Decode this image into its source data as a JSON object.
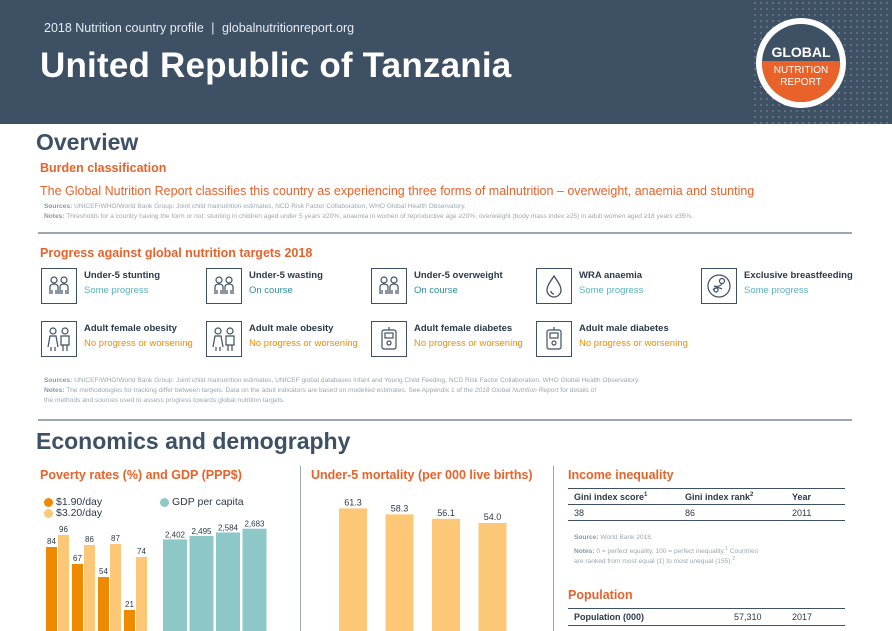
{
  "header": {
    "subtitle": "2018 Nutrition country profile",
    "separator": "|",
    "website": "globalnutritionreport.org",
    "country": "United Republic of Tanzania",
    "logo": {
      "line1": "GLOBAL",
      "line2": "NUTRITION",
      "line3": "REPORT"
    }
  },
  "overview": {
    "title": "Overview",
    "burden": {
      "heading": "Burden classification",
      "text": "The Global Nutrition Report classifies this country as experiencing three forms of malnutrition – overweight, anaemia and stunting",
      "sources_label": "Sources:",
      "sources": "UNICEF/WHO/World Bank Group: Joint child malnutrition estimates, NCD Risk Factor Collaboration, WHO Global Health Observatory.",
      "notes_label": "Notes:",
      "notes": "Thresholds for a country having the form or not: stunting in children aged under 5 years ≥20%; anaemia in women of reproductive age ≥20%; overweight (body mass index ≥25) in adult women aged ≥18 years ≥35%."
    },
    "progress": {
      "heading": "Progress against global nutrition targets 2018",
      "targets": [
        {
          "label": "Under-5 stunting",
          "status": "Some progress",
          "icon": "children-icon",
          "status_color": "#5ab4bc"
        },
        {
          "label": "Under-5 wasting",
          "status": "On course",
          "icon": "children-icon",
          "status_color": "#2f8fa0"
        },
        {
          "label": "Under-5 overweight",
          "status": "On course",
          "icon": "children-icon",
          "status_color": "#2f8fa0"
        },
        {
          "label": "WRA anaemia",
          "status": "Some progress",
          "icon": "drop-icon",
          "status_color": "#5ab4bc"
        },
        {
          "label": "Exclusive breastfeeding",
          "status": "Some progress",
          "icon": "breastfeeding-icon",
          "status_color": "#5ab4bc"
        },
        {
          "label": "Adult female obesity",
          "status": "No progress or worsening",
          "icon": "adults-icon",
          "status_color": "#f08c00"
        },
        {
          "label": "Adult male obesity",
          "status": "No progress or worsening",
          "icon": "adults-icon",
          "status_color": "#f08c00"
        },
        {
          "label": "Adult female diabetes",
          "status": "No progress or worsening",
          "icon": "glucose-meter-icon",
          "status_color": "#f08c00"
        },
        {
          "label": "Adult male diabetes",
          "status": "No progress or worsening",
          "icon": "glucose-meter-icon",
          "status_color": "#f08c00"
        }
      ],
      "sources_label": "Sources:",
      "sources": "UNICEF/WHO/World Bank Group: Joint child malnutrition estimates, UNICEF global databases Infant and Young Child Feeding, NCD Risk Factor Collaboration, WHO Global Health Observatory.",
      "notes_label": "Notes:",
      "notes_line1": "The methodologies for tracking differ between targets. Data on the adult indicators are based on modelled estimates. See Appendix 1 of the",
      "notes_report": "2018 Global Nutrition Report",
      "notes_line1_end": "for details of",
      "notes_line2": "the methods and sources used to assess progress towards global nutrition targets."
    }
  },
  "economics": {
    "title": "Economics and demography",
    "poverty": {
      "heading": "Poverty rates (%) and GDP (PPP$)"
    },
    "mortality": {
      "heading": "Under-5 mortality (per 000 live births)"
    },
    "income": {
      "heading": "Income inequality",
      "columns": [
        "Gini index score",
        "Gini index rank",
        "Year"
      ],
      "superscripts": [
        "1",
        "2"
      ],
      "row": [
        "38",
        "86",
        "2011"
      ],
      "source_label": "Source:",
      "source": "World Bank 2018.",
      "notes_label": "Notes:",
      "notes_line1": "0 = perfect equality, 100 = perfect inequality.",
      "notes_sup1": "1",
      "notes_line1_end": "Countries",
      "notes_line2": "are ranked from most equal (1) to most unequal (155).",
      "notes_sup2": "2"
    },
    "population": {
      "heading": "Population",
      "label": "Population (000)",
      "value": "57,310",
      "year": "2017"
    }
  },
  "colors": {
    "header_bg": "#3e5064",
    "accent_orange": "#e8622a",
    "poverty_190": "#ef8a00",
    "poverty_320": "#fcc878",
    "gdp": "#8ec7c8",
    "mortality": "#fcc878"
  },
  "chart_data": [
    {
      "type": "bar",
      "title": "Poverty rates (%) and GDP (PPP$)",
      "series": [
        {
          "name": "$1.90/day",
          "values": [
            84,
            67,
            54,
            21
          ]
        },
        {
          "name": "$3.20/day",
          "values": [
            96,
            86,
            87,
            74
          ]
        }
      ],
      "ylim": [
        0,
        100
      ],
      "legend": "top-left"
    },
    {
      "type": "bar",
      "series": [
        {
          "name": "GDP per capita",
          "values": [
            2402,
            2495,
            2584,
            2683
          ]
        }
      ],
      "legend": "top"
    },
    {
      "type": "bar",
      "title": "Under-5 mortality (per 000 live births)",
      "values": [
        61.3,
        58.3,
        56.1,
        54.0
      ],
      "labels": [
        "61.3",
        "58.3",
        "56.1",
        "54.0"
      ]
    }
  ]
}
